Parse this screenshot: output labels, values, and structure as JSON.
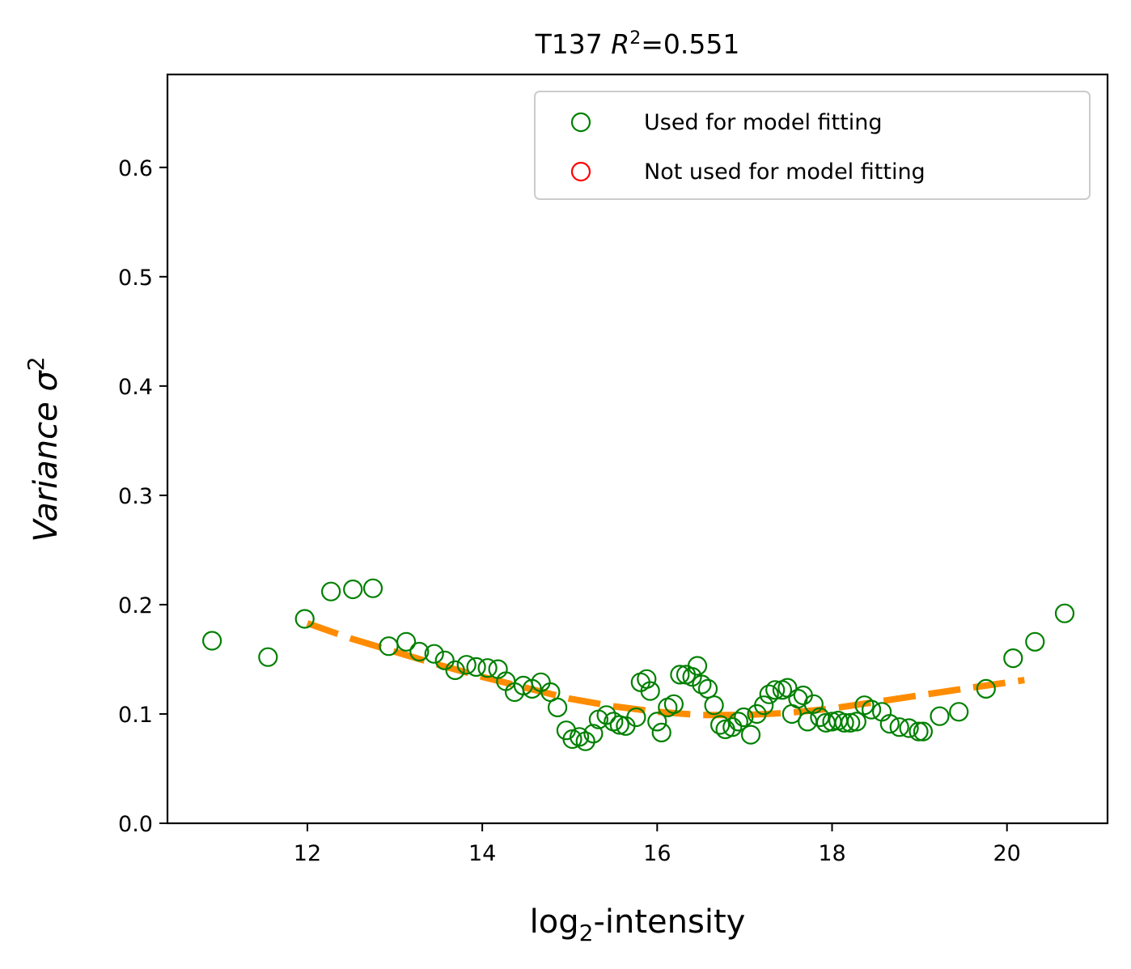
{
  "chart_data": {
    "type": "scatter",
    "title": {
      "prefix": "T137 ",
      "r_symbol": "R",
      "r_sup": "2",
      "suffix": "=0.551"
    },
    "xlabel": {
      "main": "log",
      "sub": "2",
      "rest": "-intensity"
    },
    "ylabel": {
      "main": "Variance σ",
      "sup": "2"
    },
    "xlim": [
      10.4,
      21.15
    ],
    "ylim": [
      0.0,
      0.685
    ],
    "x_ticks": [
      {
        "value": 12,
        "label": "12"
      },
      {
        "value": 14,
        "label": "14"
      },
      {
        "value": 16,
        "label": "16"
      },
      {
        "value": 18,
        "label": "18"
      },
      {
        "value": 20,
        "label": "20"
      }
    ],
    "y_ticks": [
      {
        "value": 0.0,
        "label": "0.0"
      },
      {
        "value": 0.1,
        "label": "0.1"
      },
      {
        "value": 0.2,
        "label": "0.2"
      },
      {
        "value": 0.3,
        "label": "0.3"
      },
      {
        "value": 0.4,
        "label": "0.4"
      },
      {
        "value": 0.5,
        "label": "0.5"
      },
      {
        "value": 0.6,
        "label": "0.6"
      }
    ],
    "grid": false,
    "legend_position": "upper-right",
    "legend": [
      {
        "label": "Used for model fitting",
        "color": "#008000"
      },
      {
        "label": "Not used for model fitting",
        "color": "#ff0000"
      }
    ],
    "series": [
      {
        "name": "Used for model fitting",
        "kind": "scatter",
        "marker": "open-circle",
        "color": "#008000",
        "points": [
          [
            10.91,
            0.167
          ],
          [
            11.55,
            0.152
          ],
          [
            11.97,
            0.187
          ],
          [
            12.27,
            0.212
          ],
          [
            12.52,
            0.214
          ],
          [
            12.75,
            0.215
          ],
          [
            12.93,
            0.162
          ],
          [
            13.13,
            0.166
          ],
          [
            13.28,
            0.157
          ],
          [
            13.45,
            0.155
          ],
          [
            13.57,
            0.149
          ],
          [
            13.69,
            0.14
          ],
          [
            13.82,
            0.145
          ],
          [
            13.93,
            0.143
          ],
          [
            14.06,
            0.142
          ],
          [
            14.18,
            0.141
          ],
          [
            14.27,
            0.13
          ],
          [
            14.37,
            0.12
          ],
          [
            14.47,
            0.126
          ],
          [
            14.57,
            0.123
          ],
          [
            14.67,
            0.129
          ],
          [
            14.78,
            0.12
          ],
          [
            14.86,
            0.106
          ],
          [
            14.96,
            0.085
          ],
          [
            15.03,
            0.077
          ],
          [
            15.11,
            0.079
          ],
          [
            15.18,
            0.075
          ],
          [
            15.27,
            0.082
          ],
          [
            15.33,
            0.095
          ],
          [
            15.42,
            0.099
          ],
          [
            15.5,
            0.093
          ],
          [
            15.57,
            0.09
          ],
          [
            15.64,
            0.089
          ],
          [
            15.76,
            0.097
          ],
          [
            15.81,
            0.129
          ],
          [
            15.88,
            0.132
          ],
          [
            15.92,
            0.121
          ],
          [
            16.0,
            0.093
          ],
          [
            16.05,
            0.083
          ],
          [
            16.12,
            0.106
          ],
          [
            16.19,
            0.109
          ],
          [
            16.26,
            0.136
          ],
          [
            16.33,
            0.136
          ],
          [
            16.4,
            0.134
          ],
          [
            16.46,
            0.144
          ],
          [
            16.51,
            0.127
          ],
          [
            16.58,
            0.123
          ],
          [
            16.65,
            0.108
          ],
          [
            16.72,
            0.09
          ],
          [
            16.78,
            0.086
          ],
          [
            16.86,
            0.088
          ],
          [
            16.93,
            0.093
          ],
          [
            16.99,
            0.097
          ],
          [
            17.07,
            0.081
          ],
          [
            17.14,
            0.1
          ],
          [
            17.22,
            0.108
          ],
          [
            17.28,
            0.118
          ],
          [
            17.35,
            0.122
          ],
          [
            17.43,
            0.122
          ],
          [
            17.49,
            0.124
          ],
          [
            17.54,
            0.1
          ],
          [
            17.61,
            0.114
          ],
          [
            17.67,
            0.117
          ],
          [
            17.72,
            0.093
          ],
          [
            17.79,
            0.109
          ],
          [
            17.86,
            0.097
          ],
          [
            17.93,
            0.092
          ],
          [
            18.0,
            0.093
          ],
          [
            18.07,
            0.094
          ],
          [
            18.14,
            0.092
          ],
          [
            18.21,
            0.092
          ],
          [
            18.28,
            0.093
          ],
          [
            18.37,
            0.108
          ],
          [
            18.45,
            0.104
          ],
          [
            18.57,
            0.102
          ],
          [
            18.66,
            0.091
          ],
          [
            18.77,
            0.088
          ],
          [
            18.88,
            0.087
          ],
          [
            18.99,
            0.084
          ],
          [
            19.04,
            0.084
          ],
          [
            19.23,
            0.098
          ],
          [
            19.45,
            0.102
          ],
          [
            19.76,
            0.123
          ],
          [
            20.07,
            0.151
          ],
          [
            20.32,
            0.166
          ],
          [
            20.66,
            0.192
          ]
        ]
      },
      {
        "name": "Not used for model fitting",
        "kind": "scatter",
        "marker": "open-circle",
        "color": "#ff0000",
        "points": []
      },
      {
        "kind": "line",
        "style": "dashed",
        "color": "#ff8c00",
        "points": [
          [
            12.0,
            0.183
          ],
          [
            12.5,
            0.169
          ],
          [
            13.0,
            0.157
          ],
          [
            13.5,
            0.145
          ],
          [
            14.0,
            0.134
          ],
          [
            14.5,
            0.124
          ],
          [
            15.0,
            0.114
          ],
          [
            15.5,
            0.107
          ],
          [
            16.0,
            0.102
          ],
          [
            16.5,
            0.099
          ],
          [
            17.0,
            0.099
          ],
          [
            17.5,
            0.101
          ],
          [
            18.0,
            0.105
          ],
          [
            18.5,
            0.111
          ],
          [
            19.0,
            0.117
          ],
          [
            19.5,
            0.123
          ],
          [
            20.2,
            0.131
          ]
        ]
      }
    ]
  }
}
